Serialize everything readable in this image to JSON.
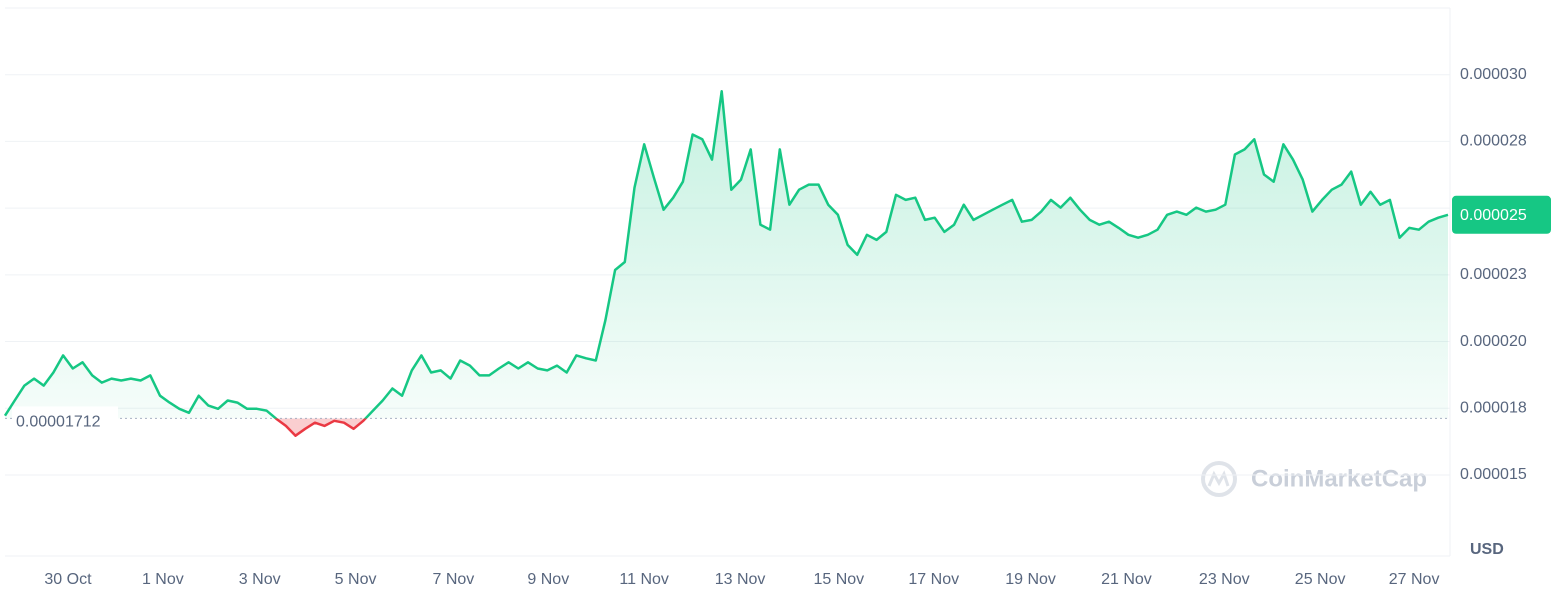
{
  "chart_data": {
    "type": "line",
    "color": "#16c784",
    "down_color": "#ea3943",
    "values": [
      1.722e-05,
      1.779e-05,
      1.835e-05,
      1.861e-05,
      1.835e-05,
      1.884e-05,
      1.948e-05,
      1.899e-05,
      1.922e-05,
      1.873e-05,
      1.846e-05,
      1.861e-05,
      1.854e-05,
      1.861e-05,
      1.854e-05,
      1.873e-05,
      1.797e-05,
      1.771e-05,
      1.748e-05,
      1.733e-05,
      1.797e-05,
      1.76e-05,
      1.748e-05,
      1.779e-05,
      1.771e-05,
      1.748e-05,
      1.748e-05,
      1.741e-05,
      1.711e-05,
      1.684e-05,
      1.647e-05,
      1.673e-05,
      1.696e-05,
      1.684e-05,
      1.703e-05,
      1.696e-05,
      1.673e-05,
      1.703e-05,
      1.741e-05,
      1.779e-05,
      1.824e-05,
      1.797e-05,
      1.892e-05,
      1.948e-05,
      1.884e-05,
      1.892e-05,
      1.861e-05,
      1.929e-05,
      1.91e-05,
      1.873e-05,
      1.873e-05,
      1.899e-05,
      1.922e-05,
      1.899e-05,
      1.922e-05,
      1.899e-05,
      1.892e-05,
      1.91e-05,
      1.884e-05,
      1.948e-05,
      1.937e-05,
      1.929e-05,
      2.08e-05,
      2.268e-05,
      2.298e-05,
      2.577e-05,
      2.739e-05,
      2.614e-05,
      2.494e-05,
      2.539e-05,
      2.599e-05,
      2.776e-05,
      2.758e-05,
      2.682e-05,
      2.938e-05,
      2.569e-05,
      2.607e-05,
      2.72e-05,
      2.438e-05,
      2.419e-05,
      2.72e-05,
      2.513e-05,
      2.569e-05,
      2.588e-05,
      2.588e-05,
      2.513e-05,
      2.475e-05,
      2.362e-05,
      2.325e-05,
      2.4e-05,
      2.381e-05,
      2.411e-05,
      2.55e-05,
      2.531e-05,
      2.539e-05,
      2.456e-05,
      2.464e-05,
      2.411e-05,
      2.438e-05,
      2.513e-05,
      2.456e-05,
      2.475e-05,
      2.494e-05,
      2.513e-05,
      2.531e-05,
      2.449e-05,
      2.456e-05,
      2.487e-05,
      2.531e-05,
      2.502e-05,
      2.539e-05,
      2.494e-05,
      2.456e-05,
      2.438e-05,
      2.449e-05,
      2.426e-05,
      2.4e-05,
      2.389e-05,
      2.4e-05,
      2.419e-05,
      2.475e-05,
      2.487e-05,
      2.475e-05,
      2.502e-05,
      2.487e-05,
      2.494e-05,
      2.513e-05,
      2.701e-05,
      2.72e-05,
      2.758e-05,
      2.626e-05,
      2.599e-05,
      2.739e-05,
      2.682e-05,
      2.607e-05,
      2.487e-05,
      2.531e-05,
      2.569e-05,
      2.588e-05,
      2.637e-05,
      2.513e-05,
      2.561e-05,
      2.513e-05,
      2.531e-05,
      2.389e-05,
      2.426e-05,
      2.419e-05,
      2.449e-05,
      2.464e-05,
      2.475e-05
    ],
    "baseline": 1.712e-05,
    "last_price_label": "0.000025",
    "xlim": [
      0,
      149
    ],
    "xticks": [
      {
        "value": 6.5,
        "label": "30 Oct"
      },
      {
        "value": 16.3,
        "label": "1 Nov"
      },
      {
        "value": 26.3,
        "label": "3 Nov"
      },
      {
        "value": 36.2,
        "label": "5 Nov"
      },
      {
        "value": 46.3,
        "label": "7 Nov"
      },
      {
        "value": 56.1,
        "label": "9 Nov"
      },
      {
        "value": 66.0,
        "label": "11 Nov"
      },
      {
        "value": 75.9,
        "label": "13 Nov"
      },
      {
        "value": 86.1,
        "label": "15 Nov"
      },
      {
        "value": 95.9,
        "label": "17 Nov"
      },
      {
        "value": 105.9,
        "label": "19 Nov"
      },
      {
        "value": 115.8,
        "label": "21 Nov"
      },
      {
        "value": 125.9,
        "label": "23 Nov"
      },
      {
        "value": 135.8,
        "label": "25 Nov"
      },
      {
        "value": 145.5,
        "label": "27 Nov"
      }
    ],
    "ylim": [
      1.2e-05,
      3.25e-05
    ],
    "yticks": [
      1.5e-05,
      {
        "value": 1.75e-05,
        "label": "0.000018"
      },
      {
        "value": 2e-05,
        "label": "0.000020"
      },
      {
        "value": 2.25e-05,
        "label": "0.000023"
      },
      2.5e-05,
      {
        "value": 2.75e-05,
        "label": "0.000028"
      },
      {
        "value": 3e-05,
        "label": "0.000030"
      }
    ],
    "grid": true,
    "currency": "USD",
    "watermark": "CoinMarketCap"
  }
}
